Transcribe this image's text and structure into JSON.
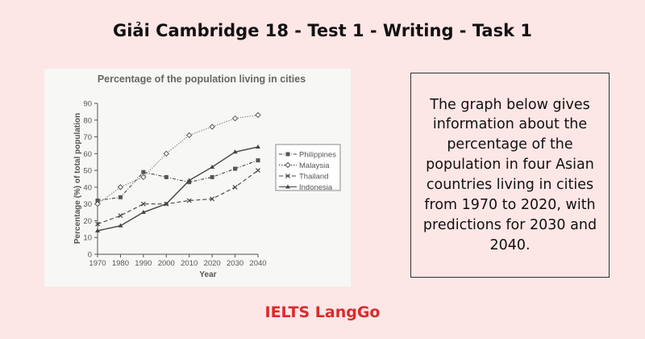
{
  "header": {
    "title": "Giải Cambridge 18 - Test 1 - Writing - Task 1"
  },
  "description": "The graph below gives information about the percentage of the population in four Asian countries living in cities from 1970 to 2020, with predictions for 2030 and 2040.",
  "brand": "IELTS LangGo",
  "colors": {
    "background": "#fde6e6",
    "brand": "#d92b2b"
  },
  "chart_data": {
    "type": "line",
    "title": "Percentage of the population living in cities",
    "xlabel": "Year",
    "ylabel": "Percentage (%) of total population",
    "x": [
      1970,
      1980,
      1990,
      2000,
      2010,
      2020,
      2030,
      2040
    ],
    "ylim": [
      0,
      90
    ],
    "yticks": [
      0,
      10,
      20,
      30,
      40,
      50,
      60,
      70,
      80,
      90
    ],
    "legend": "right",
    "series": [
      {
        "name": "Philippines",
        "values": [
          32,
          34,
          49,
          46,
          43,
          46,
          51,
          56
        ],
        "marker": "square",
        "dash": "dashdot"
      },
      {
        "name": "Malaysia",
        "values": [
          30,
          40,
          46,
          60,
          71,
          76,
          81,
          83
        ],
        "marker": "diamond",
        "dash": "dotted"
      },
      {
        "name": "Thailand",
        "values": [
          18,
          23,
          30,
          30,
          32,
          33,
          40,
          50
        ],
        "marker": "x",
        "dash": "dashed"
      },
      {
        "name": "Indonesia",
        "values": [
          14,
          17,
          25,
          30,
          44,
          52,
          61,
          64
        ],
        "marker": "triangle",
        "dash": "solid"
      }
    ]
  }
}
